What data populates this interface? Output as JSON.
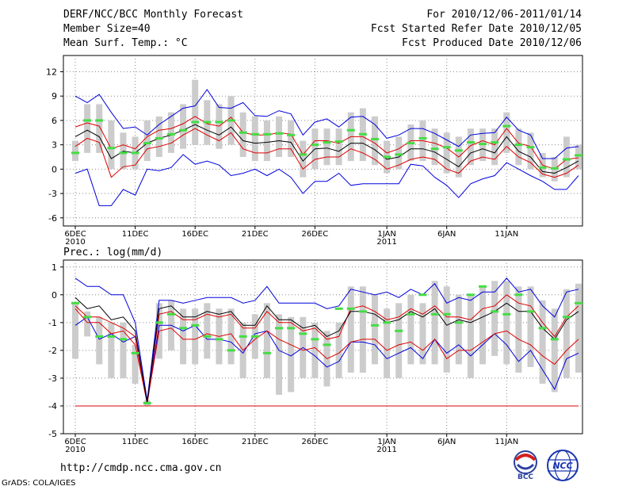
{
  "header": {
    "title": "DERF/NCC/BCC Monthly Forecast",
    "member_size": "Member Size=40",
    "variable": "Mean Surf. Temp.: °C",
    "period": "For 2010/12/06-2011/01/14",
    "started": "Fcst Started Refer Date 2010/12/05",
    "produced": "Fcst Produced Date 2010/12/06"
  },
  "footer": {
    "url": "http://cmdp.ncc.cma.gov.cn",
    "grads": "GrADS: COLA/IGES",
    "logo1_text": "BCC",
    "logo2_text": "NCC"
  },
  "colors": {
    "max_min": "#0000dd",
    "mean": "#000000",
    "band": "#dd0000",
    "median": "#44dd44",
    "box": "#cccccc",
    "grid": "#888888"
  },
  "chart_data": [
    {
      "type": "line",
      "title": "Mean Surf. Temp.: °C",
      "ylim": [
        -7,
        14
      ],
      "yticks": [
        -6,
        -3,
        0,
        3,
        6,
        9,
        12
      ],
      "x_tick_labels": [
        "6DEC\n2010",
        "11DEC",
        "16DEC",
        "21DEC",
        "26DEC",
        "1JAN\n2011",
        "6JAN",
        "11JAN"
      ],
      "x_tick_days": [
        1,
        6,
        11,
        16,
        21,
        27,
        32,
        37
      ],
      "series": [
        {
          "name": "max",
          "values": [
            9,
            8.2,
            9.2,
            7,
            5,
            5.2,
            4.2,
            5.5,
            6.5,
            7.5,
            7.8,
            9.8,
            7.6,
            7.5,
            8.2,
            6.6,
            6.5,
            7.2,
            6.8,
            4.2,
            5.8,
            6.2,
            5.2,
            6.4,
            6.5,
            5.5,
            3.8,
            4.2,
            5,
            5,
            4.4,
            3.6,
            2.8,
            4.2,
            4.4,
            4.5,
            6.4,
            4.8,
            4.2,
            1.3,
            1.3,
            2.6,
            2.8
          ]
        },
        {
          "name": "upper",
          "values": [
            5.2,
            5.7,
            5.3,
            2.5,
            3,
            2.5,
            4,
            4.8,
            5,
            5.6,
            6.5,
            5.6,
            5.3,
            6.4,
            4.5,
            4.2,
            4.2,
            4.5,
            4.3,
            1.8,
            3.5,
            3.5,
            3.2,
            4,
            4,
            3.2,
            2,
            2.5,
            3.5,
            3.5,
            3.2,
            2.6,
            1.5,
            2.9,
            3.5,
            3,
            5,
            3.2,
            2.8,
            0.5,
            0,
            1.2,
            1.4
          ]
        },
        {
          "name": "mean",
          "values": [
            4,
            4.8,
            4,
            1.3,
            2.2,
            2,
            3.2,
            3.8,
            4.2,
            4.8,
            5.5,
            4.8,
            4.2,
            5.2,
            3.5,
            3.2,
            3.3,
            3.5,
            3.3,
            1,
            2.5,
            2.6,
            2.2,
            3.2,
            3.2,
            2.4,
            1.2,
            1.5,
            2.5,
            2.5,
            2.1,
            1.2,
            0.3,
            2,
            2.5,
            2,
            4,
            2.2,
            1.5,
            -0.3,
            -0.5,
            0.2,
            1
          ]
        },
        {
          "name": "lower",
          "values": [
            2.8,
            3.8,
            3.3,
            -1,
            0.3,
            0.5,
            2.5,
            2.8,
            3.2,
            4.2,
            5,
            4.2,
            3.5,
            4.5,
            2.5,
            2,
            2,
            2.5,
            2.5,
            0,
            1.2,
            1.5,
            1.5,
            2.5,
            2,
            1.2,
            0,
            0.5,
            1.2,
            1.5,
            1.2,
            0,
            -0.5,
            1,
            1.5,
            1.2,
            2.8,
            1.5,
            0.8,
            -0.6,
            -1,
            -0.5,
            0.5
          ]
        },
        {
          "name": "min",
          "values": [
            -0.5,
            0,
            -4.5,
            -4.5,
            -2.5,
            -3.2,
            0,
            -0.2,
            0.2,
            1.8,
            0.6,
            1,
            0.5,
            -0.8,
            -0.5,
            0,
            -0.8,
            0,
            -1,
            -3,
            -1.5,
            -1.5,
            -0.5,
            -2,
            -1.8,
            -1.8,
            -1.8,
            -1.8,
            0.6,
            0.4,
            -1,
            -2,
            -3.5,
            -1.8,
            -1.2,
            -0.8,
            0.8,
            0,
            -0.8,
            -1.5,
            -2.5,
            -2.5,
            -0.8
          ]
        },
        {
          "name": "median",
          "values": [
            2,
            6,
            6,
            2.6,
            2,
            2,
            3.2,
            3.8,
            4.3,
            4.8,
            5.8,
            5.8,
            5.8,
            6,
            4.5,
            4.3,
            4.3,
            4.4,
            4.2,
            1.8,
            3,
            3.3,
            3.4,
            4.8,
            4.3,
            3.7,
            1.5,
            1.8,
            3.2,
            3.8,
            2.5,
            2.7,
            2.3,
            3.3,
            3.1,
            3.3,
            5.3,
            3,
            2.7,
            0.2,
            0.1,
            1.2,
            1.7
          ]
        },
        {
          "name": "box_low",
          "values": [
            1,
            2,
            2,
            0,
            0,
            0,
            1,
            1.5,
            2,
            2.5,
            3,
            3,
            2.5,
            3,
            1.5,
            1,
            1,
            1.5,
            1.5,
            -1,
            0,
            0.5,
            0.5,
            1,
            1,
            0.5,
            -0.5,
            0,
            1,
            1,
            0.5,
            -0.5,
            -1,
            0.5,
            1,
            0.5,
            2,
            0.5,
            0,
            -1,
            -1.5,
            -1,
            0
          ]
        },
        {
          "name": "box_high",
          "values": [
            3.5,
            8,
            8,
            6,
            4.5,
            4,
            6,
            6.5,
            7,
            8,
            11,
            8.5,
            8,
            9,
            7,
            6.5,
            6,
            6.5,
            6,
            3.5,
            5,
            5,
            5,
            7,
            7.5,
            6.5,
            3.5,
            4,
            5.5,
            6,
            5,
            4.5,
            4,
            5,
            5,
            5,
            7,
            5,
            4.5,
            2,
            1.5,
            4,
            3
          ]
        }
      ]
    },
    {
      "type": "line",
      "title": "Prec.: log(mm/d)",
      "ylim": [
        -5,
        1.25
      ],
      "yticks": [
        -5,
        -4,
        -3,
        -2,
        -1,
        0,
        1
      ],
      "x_tick_labels": [
        "6DEC\n2010",
        "11DEC",
        "16DEC",
        "21DEC",
        "26DEC",
        "1JAN\n2011",
        "6JAN",
        "11JAN"
      ],
      "x_tick_days": [
        1,
        6,
        11,
        16,
        21,
        27,
        32,
        37
      ],
      "series": [
        {
          "name": "max",
          "values": [
            0.6,
            0.3,
            0.3,
            0,
            0,
            -1,
            -3.8,
            -0.2,
            -0.2,
            -0.3,
            -0.2,
            -0.1,
            -0.1,
            -0.1,
            -0.3,
            -0.2,
            0.3,
            -0.3,
            -0.3,
            -0.3,
            -0.3,
            -0.5,
            -0.4,
            0.2,
            0.1,
            0,
            0.1,
            -0.1,
            0.2,
            0,
            0.4,
            -0.3,
            -0.1,
            -0.2,
            0.1,
            0.1,
            0.6,
            0.1,
            0.2,
            -0.4,
            -0.8,
            0.1,
            0.2
          ]
        },
        {
          "name": "upper",
          "values": [
            -0.4,
            -0.8,
            -0.8,
            -1,
            -1.2,
            -1.5,
            -3.9,
            -0.7,
            -0.6,
            -0.9,
            -0.9,
            -0.7,
            -0.8,
            -0.7,
            -1.2,
            -1.2,
            -0.6,
            -1,
            -1,
            -1.3,
            -1.2,
            -1.6,
            -1.5,
            -0.5,
            -0.4,
            -0.6,
            -0.9,
            -0.8,
            -0.5,
            -0.7,
            -0.4,
            -0.8,
            -0.8,
            -0.9,
            -0.5,
            -0.4,
            0,
            -0.3,
            -0.4,
            -1,
            -1.5,
            -0.8,
            -0.4
          ]
        },
        {
          "name": "mean",
          "values": [
            -0.1,
            -0.5,
            -0.4,
            -0.9,
            -0.8,
            -1.3,
            -3.9,
            -0.5,
            -0.4,
            -0.8,
            -0.8,
            -0.6,
            -0.7,
            -0.6,
            -1.1,
            -1.1,
            -0.4,
            -0.9,
            -0.9,
            -1.2,
            -1.1,
            -1.5,
            -1.3,
            -0.6,
            -0.6,
            -0.7,
            -1,
            -0.9,
            -0.6,
            -0.8,
            -0.5,
            -1.1,
            -0.9,
            -1,
            -0.8,
            -0.6,
            -0.3,
            -0.6,
            -0.6,
            -1.2,
            -1.6,
            -0.9,
            -0.6
          ]
        },
        {
          "name": "lower",
          "values": [
            -0.5,
            -1,
            -1,
            -1.4,
            -1.3,
            -1.8,
            -3.9,
            -1.3,
            -1.2,
            -1.6,
            -1.6,
            -1.4,
            -1.5,
            -1.4,
            -2,
            -1.6,
            -1.3,
            -1.6,
            -1.8,
            -2,
            -1.9,
            -2.3,
            -2.1,
            -1.7,
            -1.6,
            -1.6,
            -2,
            -1.8,
            -1.7,
            -2,
            -1.6,
            -2.3,
            -2,
            -2,
            -1.7,
            -1.4,
            -1.3,
            -1.6,
            -1.8,
            -2.2,
            -2.5,
            -2,
            -1.6
          ]
        },
        {
          "name": "min",
          "values": [
            -1.1,
            -0.8,
            -1.6,
            -1.4,
            -1.7,
            -1.5,
            -3.9,
            -1.1,
            -1.1,
            -1.3,
            -1.1,
            -1.6,
            -1.6,
            -1.7,
            -2.1,
            -1.4,
            -1.3,
            -2,
            -2.2,
            -1.9,
            -2.2,
            -2.6,
            -2.4,
            -1.7,
            -1.7,
            -1.8,
            -2.3,
            -2.1,
            -1.9,
            -2.3,
            -1.6,
            -2.1,
            -1.8,
            -2.2,
            -1.8,
            -1.4,
            -1.8,
            -2.4,
            -2,
            -2.7,
            -3.4,
            -2.3,
            -2.1
          ]
        },
        {
          "name": "median",
          "values": [
            -0.3,
            -0.8,
            -1.5,
            -1.5,
            -1.6,
            -2.1,
            -3.9,
            -1,
            -0.7,
            -1.2,
            -1.1,
            -1.5,
            -1.6,
            -2,
            -1.5,
            -1.5,
            -2.1,
            -1.2,
            -1.2,
            -1.4,
            -1.6,
            -1.8,
            -0.5,
            -0.5,
            -0.6,
            -1.1,
            -1,
            -1.3,
            -0.7,
            0,
            -0.7,
            -0.7,
            -1,
            0,
            0.3,
            -0.6,
            -0.7,
            0,
            -0.6,
            -1.2,
            -1.6,
            -0.8,
            -0.3
          ]
        },
        {
          "name": "box_low",
          "values": [
            -2.3,
            -1.5,
            -2.5,
            -3,
            -3,
            -3.2,
            -4,
            -2.3,
            -2,
            -2.5,
            -2.5,
            -2.3,
            -2.5,
            -2.5,
            -3,
            -2.3,
            -3,
            -3.6,
            -3.5,
            -3,
            -3,
            -3.3,
            -3,
            -2.8,
            -2.8,
            -2.5,
            -3,
            -3,
            -2.5,
            -2.5,
            -2.5,
            -2.8,
            -2.5,
            -3,
            -2.5,
            -2.2,
            -2.5,
            -2.8,
            -2.6,
            -3.2,
            -3.5,
            -3,
            -2.8
          ]
        },
        {
          "name": "box_high",
          "values": [
            -0.3,
            -0.6,
            -0.8,
            -1,
            -1,
            -1.8,
            -3.8,
            -0.3,
            -0.2,
            -0.5,
            -0.5,
            -0.3,
            -0.5,
            -0.5,
            -1,
            -0.7,
            -0.3,
            -0.7,
            -0.8,
            -0.8,
            -1,
            -1.3,
            -1,
            0.3,
            0.3,
            0,
            -0.5,
            -0.3,
            0,
            -0.3,
            0.5,
            0.3,
            0,
            0,
            0.3,
            0.5,
            0.5,
            0.3,
            0.3,
            -0.2,
            -0.5,
            0.2,
            0.4
          ]
        }
      ],
      "floor_line": -4
    }
  ]
}
